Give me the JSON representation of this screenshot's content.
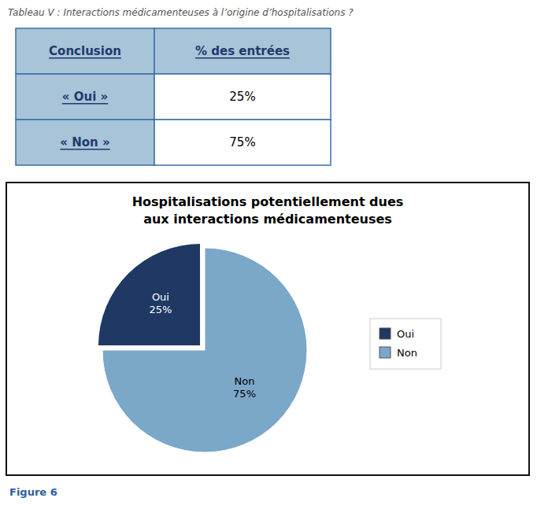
{
  "chart_data": [
    {
      "type": "table",
      "title": "Tableau V : Interactions médicamenteuses à l’origine d’hospitalisations ?",
      "columns": [
        "Conclusion",
        "% des entrées"
      ],
      "rows": [
        [
          "« Oui »",
          "25%"
        ],
        [
          "« Non »",
          "75%"
        ]
      ]
    },
    {
      "type": "pie",
      "title": [
        "Hospitalisations potentiellement dues",
        "aux interactions médicamenteuses"
      ],
      "categories": [
        "Oui",
        "Non"
      ],
      "values": [
        25,
        75
      ],
      "value_labels": [
        "25%",
        "75%"
      ],
      "colors": [
        "#1F3864",
        "#7BA7C9"
      ],
      "data_labels": true,
      "legend": "right",
      "annotations": [
        "Figure 6"
      ]
    }
  ]
}
